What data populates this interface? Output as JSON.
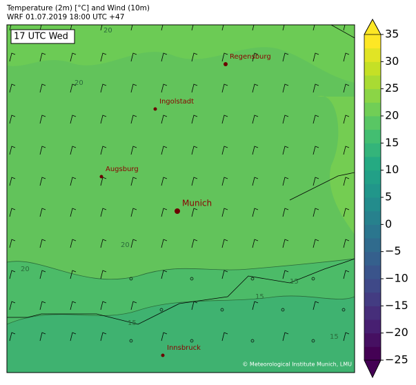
{
  "header": {
    "title_line1": "Temperature (2m) [°C] and Wind (10m)",
    "title_line2": "WRF 01.07.2019 18:00 UTC +47"
  },
  "time_label": "17 UTC Wed",
  "cities": [
    {
      "name": "Regensburg"
    },
    {
      "name": "Ingolstadt"
    },
    {
      "name": "Augsburg"
    },
    {
      "name": "Munich"
    },
    {
      "name": "Innsbruck"
    }
  ],
  "contour_labels": [
    "20",
    "20",
    "20",
    "20",
    "15",
    "15",
    "15",
    "15"
  ],
  "credit": "© Meteorological Institute Munich, LMU",
  "colorbar": {
    "ylim": [
      -25,
      35
    ],
    "yticks": [
      35,
      30,
      25,
      20,
      15,
      10,
      5,
      0,
      {
        "value": -5,
        "label": "−5"
      },
      {
        "value": -10,
        "label": "−10"
      },
      {
        "value": -15,
        "label": "−15"
      },
      {
        "value": -20,
        "label": "−20"
      },
      {
        "value": -25,
        "label": "−25"
      }
    ]
  }
}
